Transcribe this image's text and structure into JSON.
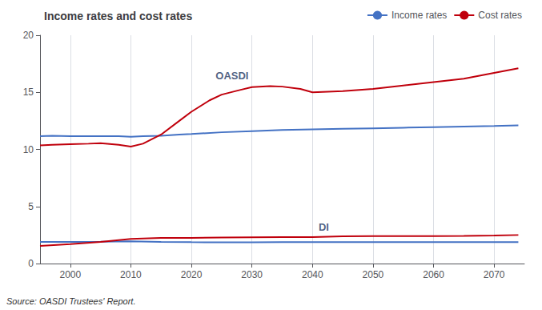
{
  "chart_data": {
    "type": "line",
    "title": "Income rates and cost rates",
    "source": "Source: OASDI Trustees' Report.",
    "xlim": [
      1995,
      2075
    ],
    "xticks": [
      2000,
      2010,
      2020,
      2030,
      2040,
      2050,
      2060,
      2070
    ],
    "ylim": [
      0,
      20
    ],
    "yticks": [
      0,
      5,
      10,
      15,
      20
    ],
    "grid": "x",
    "legend": "upper right",
    "annotations": [
      {
        "text": "OASDI",
        "x": 2024,
        "y": 16.0
      },
      {
        "text": "DI",
        "x": 2041,
        "y": 2.72
      }
    ],
    "series": [
      {
        "name": "Income rates",
        "color": "#4472C4",
        "x": [
          1995,
          1997,
          2000,
          2003,
          2005,
          2008,
          2010,
          2012,
          2015,
          2018,
          2020,
          2025,
          2030,
          2035,
          2040,
          2045,
          2050,
          2055,
          2060,
          2065,
          2070,
          2074
        ],
        "values": [
          11.15,
          11.2,
          11.15,
          11.15,
          11.15,
          11.15,
          11.1,
          11.15,
          11.2,
          11.3,
          11.35,
          11.5,
          11.6,
          11.7,
          11.75,
          11.8,
          11.85,
          11.9,
          11.95,
          12.0,
          12.05,
          12.1
        ]
      },
      {
        "name": "Cost rates",
        "color": "#C0000C",
        "x": [
          1995,
          1997,
          2000,
          2003,
          2005,
          2008,
          2010,
          2012,
          2015,
          2018,
          2020,
          2023,
          2025,
          2028,
          2030,
          2033,
          2035,
          2038,
          2040,
          2045,
          2050,
          2055,
          2060,
          2065,
          2070,
          2074
        ],
        "values": [
          10.35,
          10.4,
          10.45,
          10.5,
          10.55,
          10.4,
          10.25,
          10.5,
          11.3,
          12.5,
          13.3,
          14.3,
          14.8,
          15.2,
          15.45,
          15.55,
          15.5,
          15.3,
          15.0,
          15.1,
          15.3,
          15.6,
          15.9,
          16.2,
          16.7,
          17.1
        ]
      },
      {
        "name": "Income rates",
        "color": "#4472C4",
        "x": [
          1995,
          2000,
          2005,
          2010,
          2015,
          2020,
          2025,
          2030,
          2035,
          2040,
          2045,
          2050,
          2055,
          2060,
          2065,
          2070,
          2074
        ],
        "values": [
          1.9,
          1.9,
          1.92,
          1.95,
          1.9,
          1.87,
          1.86,
          1.86,
          1.87,
          1.87,
          1.87,
          1.87,
          1.87,
          1.87,
          1.87,
          1.87,
          1.87
        ]
      },
      {
        "name": "Cost rates",
        "color": "#C0000C",
        "x": [
          1995,
          2000,
          2005,
          2008,
          2010,
          2012,
          2015,
          2018,
          2020,
          2025,
          2030,
          2035,
          2040,
          2045,
          2050,
          2055,
          2060,
          2065,
          2070,
          2074
        ],
        "values": [
          1.55,
          1.7,
          1.9,
          2.05,
          2.15,
          2.2,
          2.25,
          2.25,
          2.25,
          2.28,
          2.3,
          2.32,
          2.32,
          2.38,
          2.4,
          2.4,
          2.4,
          2.42,
          2.45,
          2.5
        ]
      }
    ]
  }
}
